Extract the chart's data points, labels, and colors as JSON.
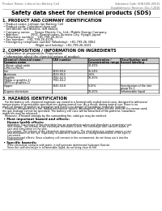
{
  "bg_color": "#ffffff",
  "header_left": "Product Name: Lithium Ion Battery Cell",
  "header_right": "Substance Code: SHK-6481-00015\nEstablishment / Revision: Dec.7,2016",
  "main_title": "Safety data sheet for chemical products (SDS)",
  "s1_title": "1. PRODUCT AND COMPANY IDENTIFICATION",
  "s1_lines": [
    " • Product name: Lithium Ion Battery Cell",
    " • Product code: Cylindrical-type cell",
    "    SHI 86500, SHI 86500L, SHI 86504",
    " • Company name:     Sanyo Electric Co., Ltd., Mobile Energy Company",
    " • Address:             2001, Kamishinden, Sumoto-City, Hyogo, Japan",
    " • Telephone number:   +81-799-26-4111",
    " • Fax number:   +81-799-26-4129",
    " • Emergency telephone number (Weekday): +81-799-26-3062",
    "                                    (Night and holiday): +81-799-26-4101"
  ],
  "s2_title": "2. COMPOSITION / INFORMATION ON INGREDIENTS",
  "s2_sub1": " • Substance or preparation: Preparation",
  "s2_sub2": " • Information about the chemical nature of product:",
  "col_headers1": [
    "Chemical chemical name /",
    "CAS number",
    "Concentration /",
    "Classification and"
  ],
  "col_headers2": [
    "Common name",
    "",
    "Concentration range",
    "hazard labeling"
  ],
  "table_rows": [
    [
      "Lithium cobalt oxide",
      "-",
      "30-45%",
      "-"
    ],
    [
      "(LiMn-Co-PbO4)",
      "",
      "",
      ""
    ],
    [
      "Iron",
      "7439-89-6",
      "16-24%",
      "-"
    ],
    [
      "Aluminum",
      "7429-90-5",
      "2-6%",
      "-"
    ],
    [
      "Graphite",
      "7782-42-5",
      "10-20%",
      "-"
    ],
    [
      "(Wada st graphite-1)",
      "7782-44-2",
      "",
      ""
    ],
    [
      "(AFRI-co graphite-1)",
      "",
      "",
      ""
    ],
    [
      "Copper",
      "7440-50-8",
      "5-15%",
      "Sensitization of the skin"
    ],
    [
      "",
      "",
      "",
      "group No.2"
    ],
    [
      "Organic electrolyte",
      "-",
      "10-20%",
      "Inflammable liquid"
    ]
  ],
  "s3_title": "3. HAZARDS IDENTIFICATION",
  "s3_para": [
    "   For the battery cell, chemical materials are stored in a hermetically sealed metal case, designed to withstand",
    "temperatures in permissible-specifications during normal use. As a result, during normal use, there is no",
    "physical danger of ignition or aspiration and there is no danger of hazardous materials leakage.",
    "   However, if exposed to a fire, added mechanical shocks, decomposed, when electric wires or dry means used,",
    "the gas leakage cannot be operated. The battery cell case will be breached of fire-patterns, hazardous",
    "materials may be released.",
    "   Moreover, if heated strongly by the surrounding fire, solid gas may be emitted."
  ],
  "s3_bullet": " • Most important hazard and effects:",
  "s3_human": "   Human health effects:",
  "s3_human_lines": [
    "      Inhalation: The release of the electrolyte has an anaesthesia action and stimulates a respiratory tract.",
    "      Skin contact: The release of the electrolyte stimulates a skin. The electrolyte skin contact causes a",
    "      sore and stimulation on the skin.",
    "      Eye contact: The release of the electrolyte stimulates eyes. The electrolyte eye contact causes a sore",
    "      and stimulation on the eye. Especially, a substance that causes a strong inflammation of the eyes is",
    "      concerned.",
    "      Environmental effects: Since a battery cell remains in the environment, do not throw out it into the",
    "      environment."
  ],
  "s3_specific": " • Specific hazards:",
  "s3_specific_lines": [
    "      If the electrolyte contacts with water, it will generate detrimental hydrogen fluoride.",
    "      Since the said electrolyte is inflammable liquid, do not bring close to fire."
  ]
}
